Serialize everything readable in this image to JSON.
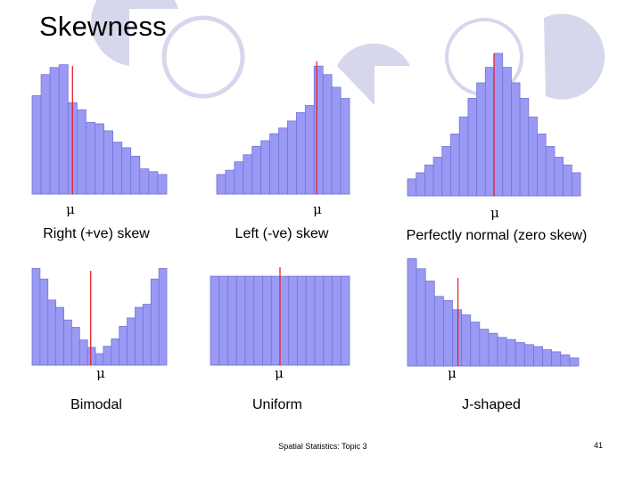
{
  "slide": {
    "title": "Skewness",
    "footer": "Spatial Statistics: Topic 3",
    "page_number": "41"
  },
  "colors": {
    "bar_fill": "#9a9af5",
    "bar_stroke": "#7474d8",
    "mean_line": "#e8202a",
    "decor_circle": "#d6d6ec"
  },
  "chart_data": [
    {
      "type": "bar",
      "caption": "Right  (+ve) skew",
      "mean_symbol": "μ",
      "mean_position": 4.5,
      "values": [
        7,
        8.5,
        9,
        9.2,
        6.5,
        6,
        5.1,
        5,
        4.5,
        3.7,
        3.3,
        2.7,
        1.8,
        1.6,
        1.4
      ]
    },
    {
      "type": "bar",
      "caption": "Left  (-ve) skew",
      "mean_symbol": "μ",
      "mean_position": 11.3,
      "values": [
        1.4,
        1.7,
        2.3,
        2.8,
        3.4,
        3.8,
        4.3,
        4.7,
        5.2,
        5.8,
        6.3,
        9.1,
        8.5,
        7.6,
        6.8
      ]
    },
    {
      "type": "bar",
      "caption": "Perfectly normal (zero skew)",
      "mean_symbol": "μ",
      "mean_position": 10,
      "values": [
        1.1,
        1.5,
        2.0,
        2.5,
        3.2,
        4.0,
        5.1,
        6.3,
        7.3,
        8.3,
        9.2,
        8.3,
        7.3,
        6.3,
        5.1,
        4.0,
        3.2,
        2.5,
        2.0,
        1.5
      ]
    },
    {
      "type": "bar",
      "caption": "Bimodal",
      "mean_symbol": "μ",
      "mean_position": 7.4,
      "values": [
        9.2,
        8.2,
        6.2,
        5.5,
        4.3,
        3.6,
        2.4,
        1.7,
        1.1,
        1.8,
        2.5,
        3.7,
        4.5,
        5.5,
        5.8,
        8.2,
        9.2
      ]
    },
    {
      "type": "bar",
      "caption": "Uniform",
      "mean_symbol": "μ",
      "mean_position": 8,
      "values": [
        9,
        9,
        9,
        9,
        9,
        9,
        9,
        9,
        9,
        9,
        9,
        9,
        9,
        9,
        9,
        9
      ]
    },
    {
      "type": "bar",
      "caption": "J-shaped",
      "mean_symbol": "μ",
      "mean_position": 5.6,
      "values": [
        10.5,
        9.5,
        8.3,
        6.8,
        6.4,
        5.5,
        5.0,
        4.3,
        3.6,
        3.2,
        2.8,
        2.6,
        2.3,
        2.1,
        1.9,
        1.6,
        1.4,
        1.1,
        0.8
      ]
    }
  ]
}
